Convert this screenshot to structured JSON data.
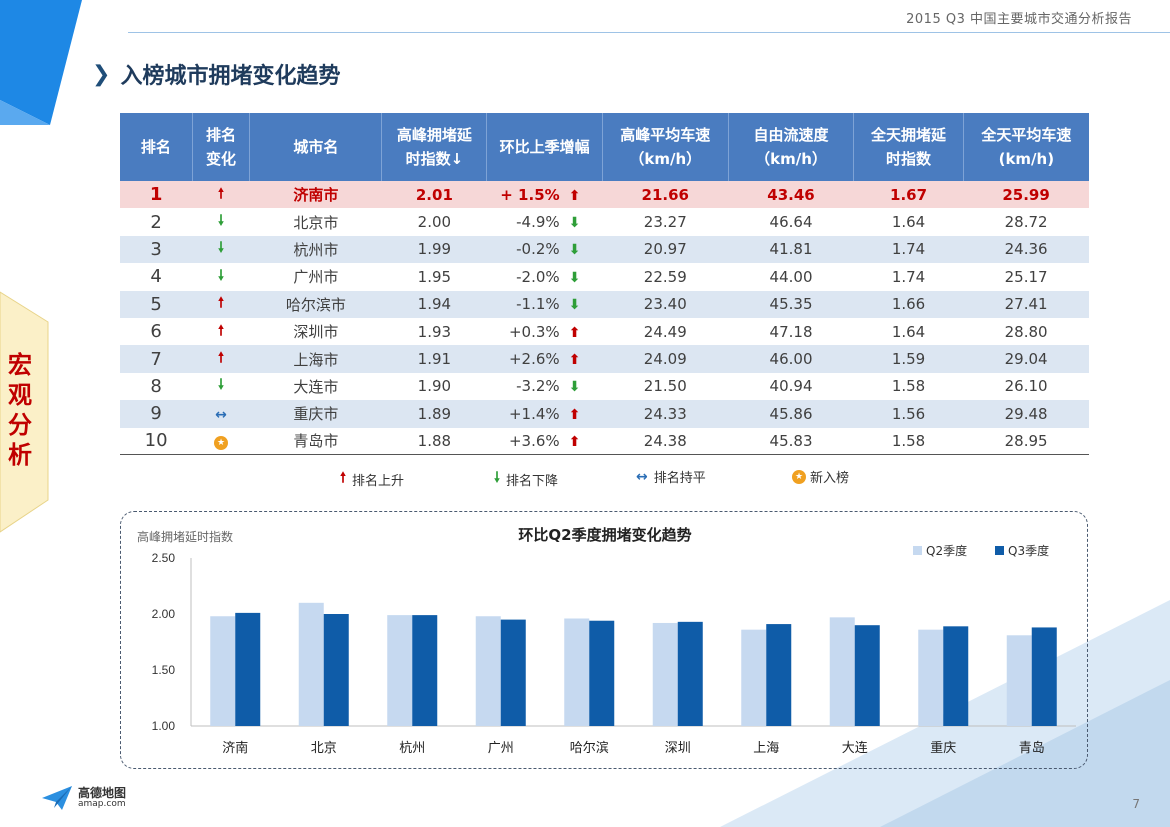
{
  "header": {
    "report_title": "2015 Q3 中国主要城市交通分析报告"
  },
  "page_title": "入榜城市拥堵变化趋势",
  "side_tab": {
    "chars": [
      "宏",
      "观",
      "分",
      "析"
    ],
    "color": "#c00000"
  },
  "table": {
    "headers": [
      "排名",
      "排名变化",
      "城市名",
      "高峰拥堵延时指数↓",
      "环比上季增幅",
      "高峰平均车速（km/h）",
      "自由流速度（km/h）",
      "全天拥堵延时指数",
      "全天平均车速(km/h)"
    ],
    "header_lines": [
      [
        "排名"
      ],
      [
        "排名",
        "变化"
      ],
      [
        "城市名"
      ],
      [
        "高峰拥堵延",
        "时指数↓"
      ],
      [
        "环比上季增幅"
      ],
      [
        "高峰平均车速",
        "（km/h）"
      ],
      [
        "自由流速度",
        "（km/h）"
      ],
      [
        "全天拥堵延",
        "时指数"
      ],
      [
        "全天平均车速",
        "(km/h)"
      ]
    ],
    "rows": [
      {
        "rank": "1",
        "change": "up",
        "city": "济南市",
        "peak_index": "2.01",
        "qoq": "+ 1.5%",
        "qoq_dir": "up",
        "peak_speed": "21.66",
        "free_speed": "43.46",
        "day_index": "1.67",
        "day_speed": "25.99"
      },
      {
        "rank": "2",
        "change": "down",
        "city": "北京市",
        "peak_index": "2.00",
        "qoq": "-4.9%",
        "qoq_dir": "down",
        "peak_speed": "23.27",
        "free_speed": "46.64",
        "day_index": "1.64",
        "day_speed": "28.72"
      },
      {
        "rank": "3",
        "change": "down",
        "city": "杭州市",
        "peak_index": "1.99",
        "qoq": "-0.2%",
        "qoq_dir": "down",
        "peak_speed": "20.97",
        "free_speed": "41.81",
        "day_index": "1.74",
        "day_speed": "24.36"
      },
      {
        "rank": "4",
        "change": "down",
        "city": "广州市",
        "peak_index": "1.95",
        "qoq": "-2.0%",
        "qoq_dir": "down",
        "peak_speed": "22.59",
        "free_speed": "44.00",
        "day_index": "1.74",
        "day_speed": "25.17"
      },
      {
        "rank": "5",
        "change": "up",
        "city": "哈尔滨市",
        "peak_index": "1.94",
        "qoq": "-1.1%",
        "qoq_dir": "down",
        "peak_speed": "23.40",
        "free_speed": "45.35",
        "day_index": "1.66",
        "day_speed": "27.41"
      },
      {
        "rank": "6",
        "change": "up",
        "city": "深圳市",
        "peak_index": "1.93",
        "qoq": "+0.3%",
        "qoq_dir": "up",
        "peak_speed": "24.49",
        "free_speed": "47.18",
        "day_index": "1.64",
        "day_speed": "28.80"
      },
      {
        "rank": "7",
        "change": "up",
        "city": "上海市",
        "peak_index": "1.91",
        "qoq": "+2.6%",
        "qoq_dir": "up",
        "peak_speed": "24.09",
        "free_speed": "46.00",
        "day_index": "1.59",
        "day_speed": "29.04"
      },
      {
        "rank": "8",
        "change": "down",
        "city": "大连市",
        "peak_index": "1.90",
        "qoq": "-3.2%",
        "qoq_dir": "down",
        "peak_speed": "21.50",
        "free_speed": "40.94",
        "day_index": "1.58",
        "day_speed": "26.10"
      },
      {
        "rank": "9",
        "change": "flat",
        "city": "重庆市",
        "peak_index": "1.89",
        "qoq": "+1.4%",
        "qoq_dir": "up",
        "peak_speed": "24.33",
        "free_speed": "45.86",
        "day_index": "1.56",
        "day_speed": "29.48"
      },
      {
        "rank": "10",
        "change": "new",
        "city": "青岛市",
        "peak_index": "1.88",
        "qoq": "+3.6%",
        "qoq_dir": "up",
        "peak_speed": "24.38",
        "free_speed": "45.83",
        "day_index": "1.58",
        "day_speed": "28.95"
      }
    ]
  },
  "legend": {
    "up": "排名上升",
    "down": "排名下降",
    "flat": "排名持平",
    "new": "新入榜"
  },
  "colors": {
    "header_bg": "#4a7cc0",
    "row_alt": "#dce6f2",
    "highlight_row": "#f6d7d7",
    "up": "#c00000",
    "down": "#2e9e38",
    "flat": "#2a6db5",
    "q2": "#c6d9f0",
    "q3": "#0f5ca8"
  },
  "chart_data": {
    "type": "bar",
    "title": "环比Q2季度拥堵变化趋势",
    "ylabel": "高峰拥堵延时指数",
    "xlabel": "",
    "categories": [
      "济南",
      "北京",
      "杭州",
      "广州",
      "哈尔滨",
      "深圳",
      "上海",
      "大连",
      "重庆",
      "青岛"
    ],
    "series": [
      {
        "name": "Q2季度",
        "values": [
          1.98,
          2.1,
          1.99,
          1.98,
          1.96,
          1.92,
          1.86,
          1.97,
          1.86,
          1.81
        ]
      },
      {
        "name": "Q3季度",
        "values": [
          2.01,
          2.0,
          1.99,
          1.95,
          1.94,
          1.93,
          1.91,
          1.9,
          1.89,
          1.88
        ]
      }
    ],
    "ylim": [
      1.0,
      2.5
    ],
    "yticks": [
      "1.00",
      "1.50",
      "2.00",
      "2.50"
    ],
    "grid": false,
    "legend_position": "top-right"
  },
  "footer": {
    "logo_name": "高德地图",
    "logo_domain": "amap.com",
    "page_number": "7"
  }
}
